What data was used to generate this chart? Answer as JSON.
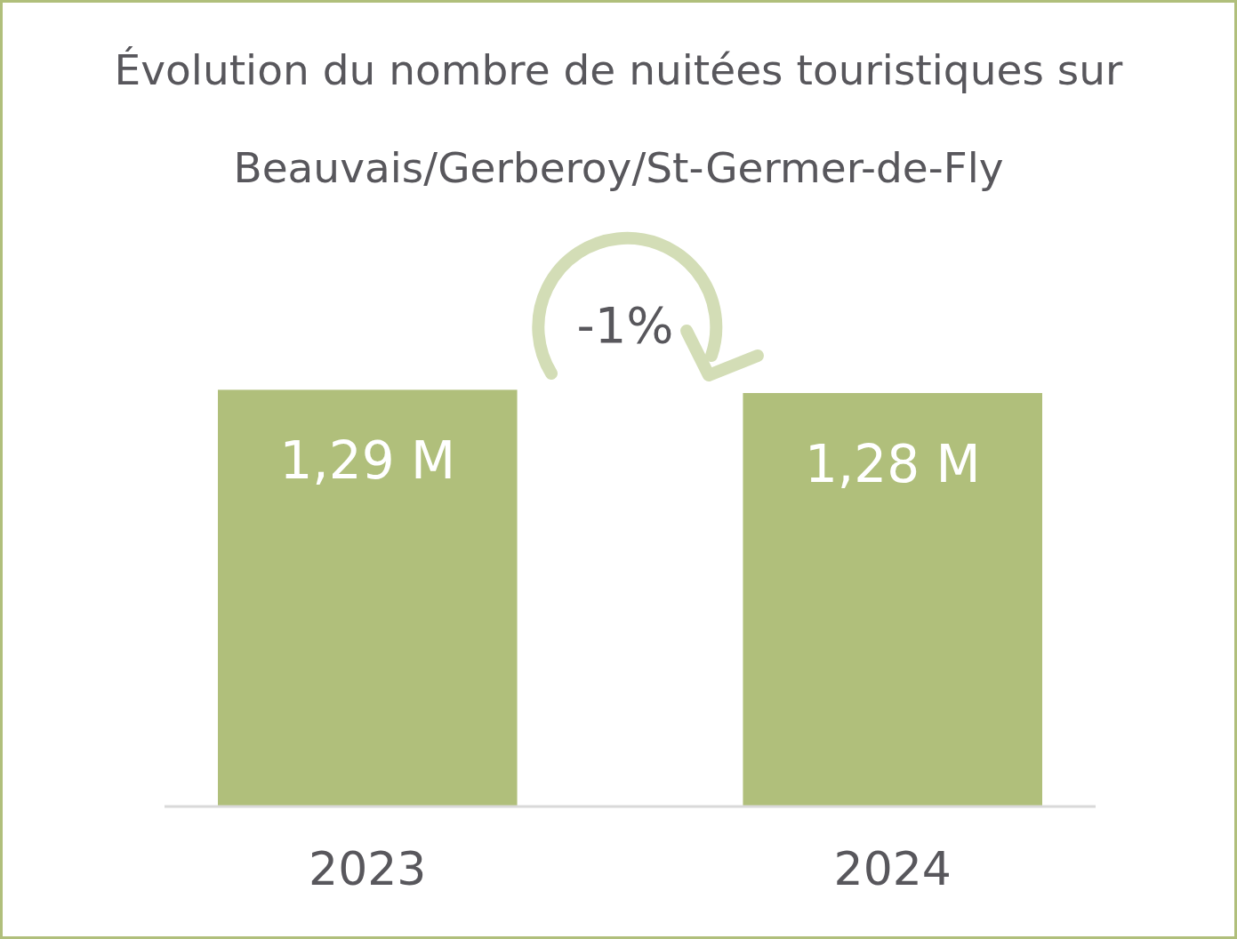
{
  "chart_data": {
    "type": "bar",
    "title": "Évolution du nombre de nuitées touristiques sur Beauvais/Gerberoy/St-Germer-de-Fly",
    "categories": [
      "2023",
      "2024"
    ],
    "values": [
      1.29,
      1.28
    ],
    "value_labels": [
      "1,29 M",
      "1,28 M"
    ],
    "color": "#b0bf7b",
    "tick_labels": "x",
    "annotations": [
      "-1%"
    ]
  }
}
